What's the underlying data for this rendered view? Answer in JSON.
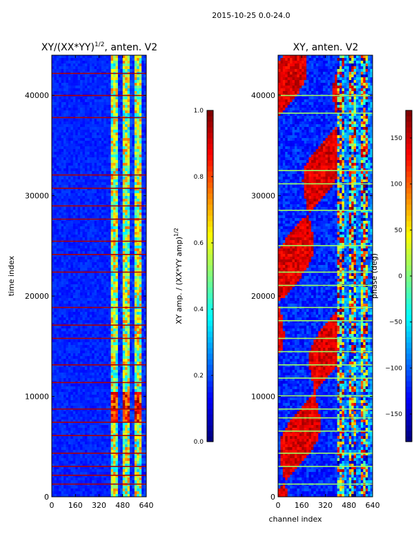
{
  "suptitle": "2015-10-25 0.0-24.0",
  "chart_data": [
    {
      "type": "heatmap",
      "title_main": "XY/(XX*YY)",
      "title_sup": "1/2",
      "title_tail": ", anten. V2",
      "ylabel": "time index",
      "xlabel": "",
      "xlim": [
        0,
        640
      ],
      "ylim": [
        0,
        44000
      ],
      "xticks": [
        0,
        160,
        320,
        480,
        640
      ],
      "yticks": [
        0,
        10000,
        20000,
        30000,
        40000
      ],
      "colorscale": "jet",
      "signal_channel_range": [
        400,
        640
      ],
      "colorbar": {
        "label_main": "XY amp. / (XX*YY amp)",
        "label_sup": "1/2",
        "range": [
          0.0,
          1.0
        ],
        "ticks": [
          0.0,
          0.2,
          0.4,
          0.6,
          0.8,
          1.0
        ],
        "tick_labels": [
          "0.0",
          "0.2",
          "0.4",
          "0.6",
          "0.8",
          "1.0"
        ]
      }
    },
    {
      "type": "heatmap",
      "title": "XY, anten. V2",
      "ylabel": "",
      "xlabel": "channel index",
      "xlim": [
        0,
        640
      ],
      "ylim": [
        0,
        44000
      ],
      "xticks": [
        0,
        160,
        320,
        480,
        640
      ],
      "yticks": [
        0,
        10000,
        20000,
        30000,
        40000
      ],
      "colorscale": "jet",
      "signal_channel_range": [
        400,
        640
      ],
      "colorbar": {
        "label": "phase (deg)",
        "range": [
          -180,
          180
        ],
        "ticks": [
          -150,
          -100,
          -50,
          0,
          50,
          100,
          150
        ],
        "tick_labels": [
          "−150",
          "−100",
          "−50",
          "0",
          "50",
          "100",
          "150"
        ]
      }
    }
  ]
}
